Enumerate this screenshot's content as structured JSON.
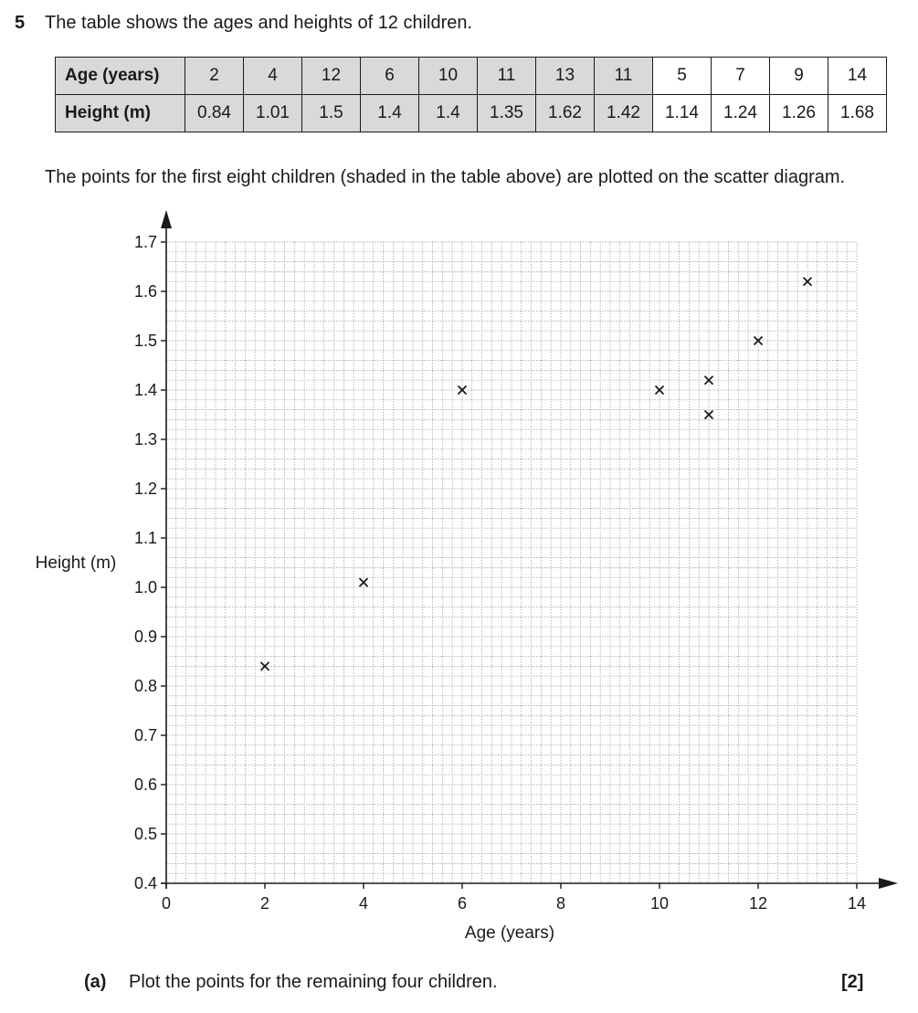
{
  "question": {
    "number": "5",
    "intro": "The table shows the ages and heights of 12 children.",
    "instruction": "The points for the first eight children (shaded in the table above) are plotted on the scatter diagram.",
    "part_a": {
      "label": "(a)",
      "text": "Plot the points for the remaining four children.",
      "marks": "[2]"
    }
  },
  "table": {
    "row_labels": [
      "Age (years)",
      "Height (m)"
    ],
    "ages": [
      "2",
      "4",
      "12",
      "6",
      "10",
      "11",
      "13",
      "11",
      "5",
      "7",
      "9",
      "14"
    ],
    "heights": [
      "0.84",
      "1.01",
      "1.5",
      "1.4",
      "1.4",
      "1.35",
      "1.62",
      "1.42",
      "1.14",
      "1.24",
      "1.26",
      "1.68"
    ],
    "shaded_count": 8,
    "shade_color": "#d9d9d9"
  },
  "chart_data": {
    "type": "scatter",
    "xlabel": "Age (years)",
    "ylabel": "Height (m)",
    "xlim": [
      0,
      14
    ],
    "ylim": [
      0.4,
      1.7
    ],
    "x_ticks": [
      "0",
      "2",
      "4",
      "6",
      "8",
      "10",
      "12",
      "14"
    ],
    "y_ticks": [
      "0.4",
      "0.5",
      "0.6",
      "0.7",
      "0.8",
      "0.9",
      "1.0",
      "1.1",
      "1.2",
      "1.3",
      "1.4",
      "1.5",
      "1.6",
      "1.7"
    ],
    "grid": true,
    "marker": "x",
    "points": [
      {
        "x": 2,
        "y": 0.84
      },
      {
        "x": 4,
        "y": 1.01
      },
      {
        "x": 12,
        "y": 1.5
      },
      {
        "x": 6,
        "y": 1.4
      },
      {
        "x": 10,
        "y": 1.4
      },
      {
        "x": 11,
        "y": 1.35
      },
      {
        "x": 13,
        "y": 1.62
      },
      {
        "x": 11,
        "y": 1.42
      }
    ]
  }
}
